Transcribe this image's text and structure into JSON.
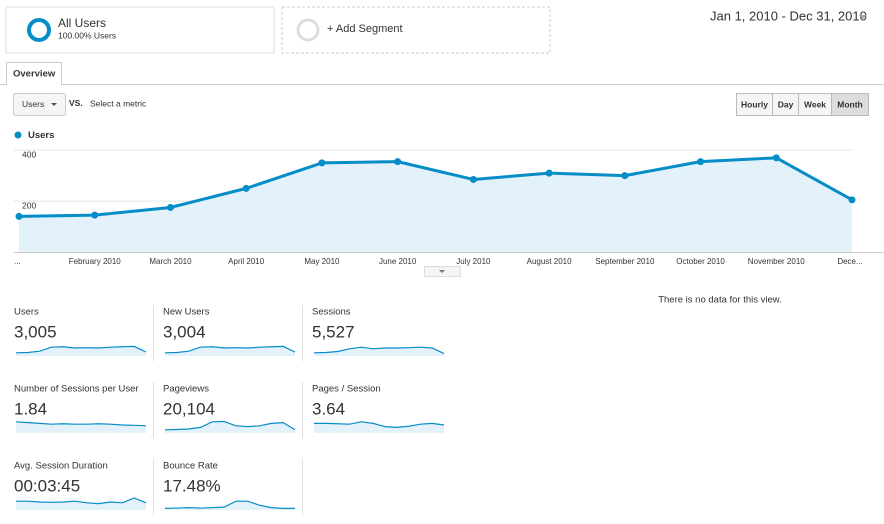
{
  "header": {
    "segments": [
      {
        "name": "All Users",
        "detail": "100.00% Users"
      },
      {
        "name": "+ Add Segment"
      }
    ],
    "date_range": "Jan 1, 2010 - Dec 31, 2010"
  },
  "tabs": [
    "Overview"
  ],
  "controls": {
    "metric": "Users",
    "vs": "VS.",
    "select_metric": "Select a metric",
    "granularity": [
      "Hourly",
      "Day",
      "Week",
      "Month"
    ],
    "selected_granularity": "Month"
  },
  "chart_data": {
    "type": "line",
    "categories": [
      "...",
      "February 2010",
      "March 2010",
      "April 2010",
      "May 2010",
      "June 2010",
      "July 2010",
      "August 2010",
      "September 2010",
      "October 2010",
      "November 2010",
      "Dece..."
    ],
    "series": [
      {
        "name": "Users",
        "color": "#058dc7",
        "values": [
          140,
          145,
          175,
          250,
          350,
          355,
          285,
          310,
          300,
          355,
          370,
          205
        ]
      }
    ],
    "ylim": [
      0,
      440
    ],
    "yticks": [
      200,
      400
    ],
    "grid": true
  },
  "metrics": [
    {
      "name": "Users",
      "value": "3,005",
      "trend": [
        20,
        22,
        30,
        55,
        58,
        50,
        52,
        50,
        55,
        58,
        60,
        25
      ]
    },
    {
      "name": "New Users",
      "value": "3,004",
      "trend": [
        20,
        22,
        30,
        55,
        58,
        50,
        52,
        50,
        55,
        58,
        60,
        25
      ]
    },
    {
      "name": "Sessions",
      "value": "5,527",
      "trend": [
        20,
        22,
        28,
        45,
        55,
        45,
        50,
        50,
        52,
        55,
        50,
        15
      ]
    },
    {
      "name": "Number of Sessions per User",
      "value": "1.84",
      "trend": [
        70,
        65,
        60,
        55,
        58,
        55,
        55,
        58,
        55,
        50,
        48,
        45
      ]
    },
    {
      "name": "Pageviews",
      "value": "20,104",
      "trend": [
        20,
        22,
        25,
        35,
        70,
        72,
        45,
        40,
        45,
        60,
        65,
        20
      ]
    },
    {
      "name": "Pages / Session",
      "value": "3.64",
      "trend": [
        60,
        60,
        58,
        55,
        70,
        60,
        40,
        35,
        42,
        55,
        60,
        50
      ]
    },
    {
      "name": "Avg. Session Duration",
      "value": "00:03:45",
      "trend": [
        55,
        55,
        50,
        48,
        50,
        55,
        45,
        40,
        50,
        45,
        75,
        45
      ]
    },
    {
      "name": "Bounce Rate",
      "value": "17.48%",
      "trend": [
        10,
        12,
        15,
        12,
        15,
        18,
        55,
        55,
        30,
        15,
        10,
        10
      ]
    }
  ],
  "empty_message": "There is no data for this view."
}
